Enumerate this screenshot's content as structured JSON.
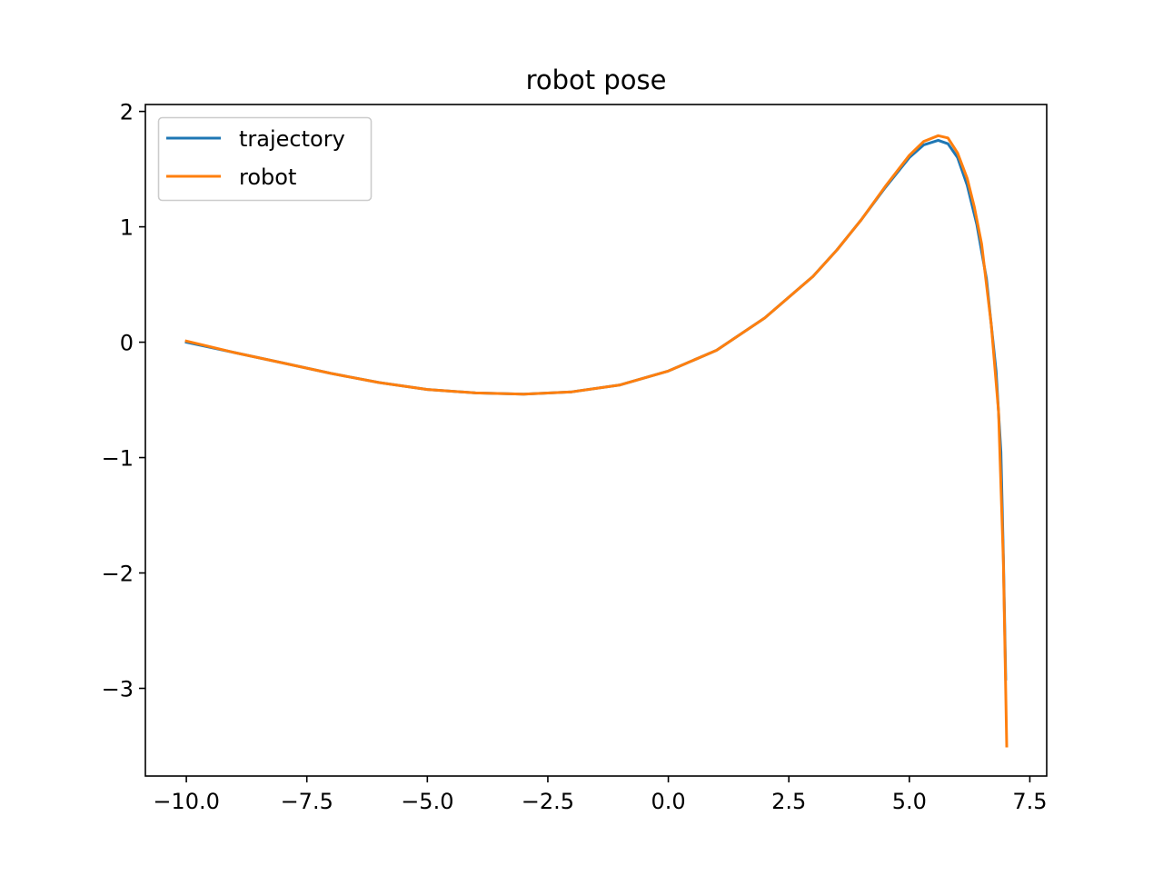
{
  "chart_data": {
    "type": "line",
    "title": "robot pose",
    "xlabel": "",
    "ylabel": "",
    "xlim": [
      -10.85,
      7.85
    ],
    "ylim": [
      -3.76,
      2.06
    ],
    "x_ticks": [
      -10.0,
      -7.5,
      -5.0,
      -2.5,
      0.0,
      2.5,
      5.0,
      7.5
    ],
    "x_tick_labels": [
      "−10.0",
      "−7.5",
      "−5.0",
      "−2.5",
      "0.0",
      "2.5",
      "5.0",
      "7.5"
    ],
    "y_ticks": [
      2,
      1,
      0,
      -1,
      -2,
      -3
    ],
    "y_tick_labels": [
      "2",
      "1",
      "0",
      "−1",
      "−2",
      "−3"
    ],
    "grid": false,
    "legend_position": "upper-left",
    "series": [
      {
        "name": "trajectory",
        "color": "#1f77b4",
        "x": [
          -10.0,
          -9.0,
          -8.0,
          -7.0,
          -6.0,
          -5.0,
          -4.0,
          -3.0,
          -2.0,
          -1.0,
          0.0,
          1.0,
          2.0,
          3.0,
          3.5,
          4.0,
          4.5,
          5.0,
          5.3,
          5.6,
          5.8,
          6.0,
          6.2,
          6.4,
          6.6,
          6.8,
          6.9,
          6.95,
          7.0
        ],
        "y": [
          0.0,
          -0.09,
          -0.18,
          -0.27,
          -0.35,
          -0.41,
          -0.44,
          -0.45,
          -0.43,
          -0.37,
          -0.25,
          -0.07,
          0.21,
          0.57,
          0.8,
          1.06,
          1.34,
          1.6,
          1.71,
          1.75,
          1.72,
          1.6,
          1.36,
          1.02,
          0.55,
          -0.25,
          -0.95,
          -1.85,
          -2.92
        ]
      },
      {
        "name": "robot",
        "color": "#ff7f0e",
        "x": [
          -10.0,
          -9.0,
          -8.0,
          -7.0,
          -6.0,
          -5.0,
          -4.0,
          -3.0,
          -2.0,
          -1.0,
          0.0,
          1.0,
          2.0,
          3.0,
          3.5,
          4.0,
          4.5,
          5.0,
          5.3,
          5.6,
          5.8,
          6.0,
          6.2,
          6.35,
          6.5,
          6.7,
          6.85,
          6.95,
          7.02
        ],
        "y": [
          0.01,
          -0.09,
          -0.18,
          -0.27,
          -0.35,
          -0.41,
          -0.44,
          -0.45,
          -0.43,
          -0.37,
          -0.25,
          -0.07,
          0.21,
          0.57,
          0.8,
          1.06,
          1.35,
          1.62,
          1.74,
          1.79,
          1.77,
          1.64,
          1.42,
          1.17,
          0.85,
          0.15,
          -0.6,
          -1.9,
          -3.5
        ]
      }
    ]
  }
}
